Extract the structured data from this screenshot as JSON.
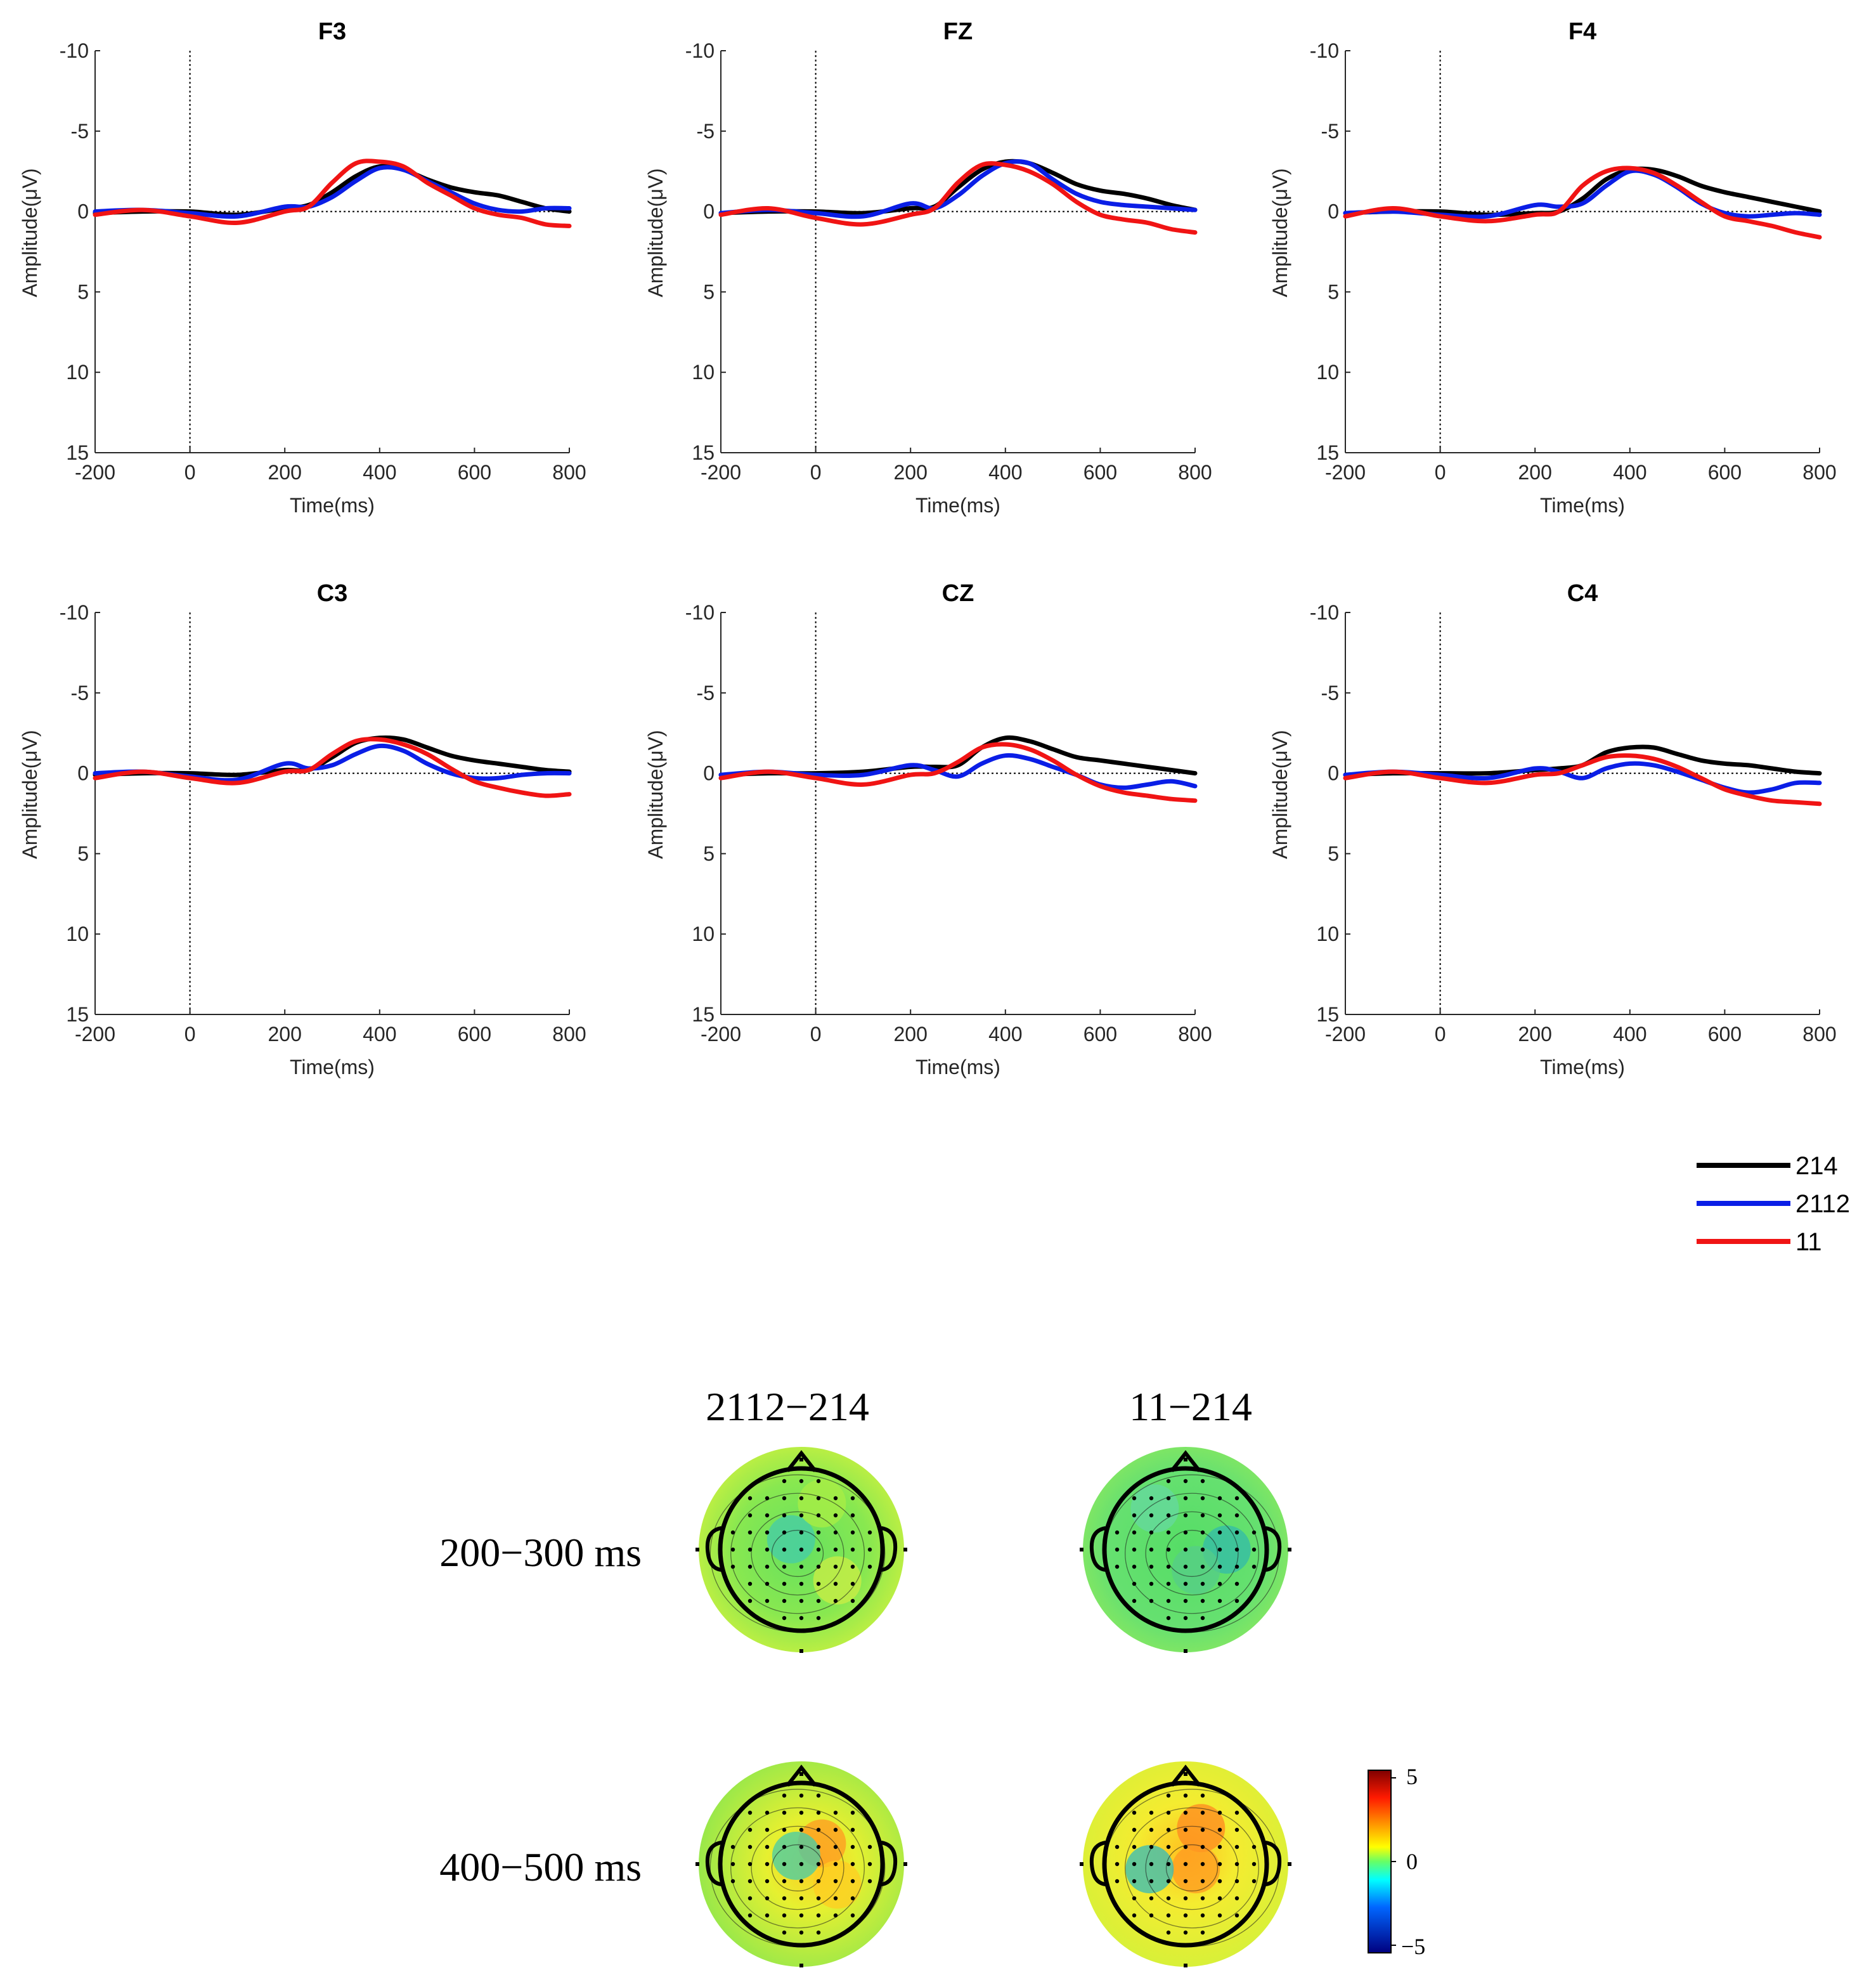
{
  "chart_data": [
    {
      "type": "line",
      "title": "F3",
      "xlabel": "Time(ms)",
      "ylabel": "Amplitude(μV)",
      "xlim": [
        -200,
        800
      ],
      "ylim": [
        -10,
        15
      ],
      "y_inverted": true,
      "xticks": [
        "-200",
        "0",
        "200",
        "400",
        "600",
        "800"
      ],
      "yticks": [
        "-10",
        "-5",
        "0",
        "5",
        "10",
        "15"
      ],
      "x": [
        -200,
        -100,
        0,
        100,
        200,
        250,
        300,
        350,
        400,
        450,
        500,
        550,
        600,
        650,
        700,
        750,
        800
      ],
      "series": [
        {
          "name": "214",
          "values": [
            0.1,
            0,
            0,
            0.2,
            -0.2,
            -0.4,
            -1.2,
            -2.2,
            -2.8,
            -2.6,
            -2.0,
            -1.5,
            -1.2,
            -1.0,
            -0.6,
            -0.2,
            0
          ]
        },
        {
          "name": "2112",
          "values": [
            0,
            -0.1,
            0.1,
            0.3,
            -0.3,
            -0.3,
            -0.9,
            -1.9,
            -2.7,
            -2.6,
            -1.9,
            -1.2,
            -0.5,
            -0.1,
            0,
            -0.2,
            -0.2
          ]
        },
        {
          "name": "11",
          "values": [
            0.2,
            -0.1,
            0.3,
            0.7,
            0,
            -0.3,
            -1.8,
            -3.0,
            -3.1,
            -2.8,
            -1.8,
            -1.0,
            -0.2,
            0.2,
            0.4,
            0.8,
            0.9
          ]
        }
      ]
    },
    {
      "type": "line",
      "title": "FZ",
      "xlabel": "Time(ms)",
      "ylabel": "Amplitude(μV)",
      "xlim": [
        -200,
        800
      ],
      "ylim": [
        -10,
        15
      ],
      "y_inverted": true,
      "xticks": [
        "-200",
        "0",
        "200",
        "400",
        "600",
        "800"
      ],
      "yticks": [
        "-10",
        "-5",
        "0",
        "5",
        "10",
        "15"
      ],
      "x": [
        -200,
        -100,
        0,
        100,
        200,
        250,
        300,
        350,
        400,
        450,
        500,
        550,
        600,
        650,
        700,
        750,
        800
      ],
      "series": [
        {
          "name": "214",
          "values": [
            0.1,
            0,
            0,
            0.1,
            -0.2,
            -0.3,
            -1.5,
            -2.6,
            -3.1,
            -3.0,
            -2.4,
            -1.7,
            -1.3,
            -1.1,
            -0.8,
            -0.4,
            -0.1
          ]
        },
        {
          "name": "2112",
          "values": [
            0.1,
            -0.1,
            0.1,
            0.3,
            -0.5,
            -0.2,
            -1.0,
            -2.2,
            -3.0,
            -3.0,
            -2.0,
            -1.1,
            -0.6,
            -0.4,
            -0.3,
            -0.2,
            -0.1
          ]
        },
        {
          "name": "11",
          "values": [
            0.2,
            -0.2,
            0.4,
            0.8,
            0.2,
            -0.2,
            -1.8,
            -2.9,
            -2.9,
            -2.5,
            -1.7,
            -0.6,
            0.2,
            0.5,
            0.7,
            1.1,
            1.3
          ]
        }
      ]
    },
    {
      "type": "line",
      "title": "F4",
      "xlabel": "Time(ms)",
      "ylabel": "Amplitude(μV)",
      "xlim": [
        -200,
        800
      ],
      "ylim": [
        -10,
        15
      ],
      "y_inverted": true,
      "xticks": [
        "-200",
        "0",
        "200",
        "400",
        "600",
        "800"
      ],
      "yticks": [
        "-10",
        "-5",
        "0",
        "5",
        "10",
        "15"
      ],
      "x": [
        -200,
        -100,
        0,
        100,
        200,
        250,
        300,
        350,
        400,
        450,
        500,
        550,
        600,
        650,
        700,
        750,
        800
      ],
      "series": [
        {
          "name": "214",
          "values": [
            0.1,
            0,
            0,
            0.2,
            0.1,
            0,
            -0.8,
            -2.0,
            -2.6,
            -2.6,
            -2.2,
            -1.6,
            -1.2,
            -0.9,
            -0.6,
            -0.3,
            0
          ]
        },
        {
          "name": "2112",
          "values": [
            0.1,
            0,
            0.2,
            0.3,
            -0.4,
            -0.3,
            -0.5,
            -1.6,
            -2.5,
            -2.3,
            -1.5,
            -0.5,
            0.1,
            0.3,
            0.2,
            0.1,
            0.2
          ]
        },
        {
          "name": "11",
          "values": [
            0.3,
            -0.2,
            0.3,
            0.6,
            0.2,
            0,
            -1.6,
            -2.5,
            -2.7,
            -2.4,
            -1.6,
            -0.6,
            0.3,
            0.6,
            0.9,
            1.3,
            1.6
          ]
        }
      ]
    },
    {
      "type": "line",
      "title": "C3",
      "xlabel": "Time(ms)",
      "ylabel": "Amplitude(μV)",
      "xlim": [
        -200,
        800
      ],
      "ylim": [
        -10,
        15
      ],
      "y_inverted": true,
      "xticks": [
        "-200",
        "0",
        "200",
        "400",
        "600",
        "800"
      ],
      "yticks": [
        "-10",
        "-5",
        "0",
        "5",
        "10",
        "15"
      ],
      "x": [
        -200,
        -100,
        0,
        100,
        200,
        250,
        300,
        350,
        400,
        450,
        500,
        550,
        600,
        650,
        700,
        750,
        800
      ],
      "series": [
        {
          "name": "214",
          "values": [
            0.1,
            0,
            0,
            0.1,
            -0.2,
            -0.2,
            -1.0,
            -1.9,
            -2.2,
            -2.1,
            -1.6,
            -1.1,
            -0.8,
            -0.6,
            -0.4,
            -0.2,
            -0.1
          ]
        },
        {
          "name": "2112",
          "values": [
            0,
            -0.1,
            0.2,
            0.4,
            -0.6,
            -0.3,
            -0.5,
            -1.2,
            -1.7,
            -1.4,
            -0.6,
            0,
            0.3,
            0.3,
            0.1,
            0,
            0
          ]
        },
        {
          "name": "11",
          "values": [
            0.3,
            -0.1,
            0.3,
            0.6,
            -0.1,
            -0.2,
            -1.2,
            -2.0,
            -2.1,
            -1.8,
            -1.2,
            -0.3,
            0.5,
            0.9,
            1.2,
            1.4,
            1.3
          ]
        }
      ]
    },
    {
      "type": "line",
      "title": "CZ",
      "xlabel": "Time(ms)",
      "ylabel": "Amplitude(μV)",
      "xlim": [
        -200,
        800
      ],
      "ylim": [
        -10,
        15
      ],
      "y_inverted": true,
      "xticks": [
        "-200",
        "0",
        "200",
        "400",
        "600",
        "800"
      ],
      "yticks": [
        "-10",
        "-5",
        "0",
        "5",
        "10",
        "15"
      ],
      "x": [
        -200,
        -100,
        0,
        100,
        200,
        250,
        300,
        350,
        400,
        450,
        500,
        550,
        600,
        650,
        700,
        750,
        800
      ],
      "series": [
        {
          "name": "214",
          "values": [
            0.1,
            0,
            0,
            -0.1,
            -0.4,
            -0.4,
            -0.5,
            -1.6,
            -2.2,
            -2.0,
            -1.5,
            -1.0,
            -0.8,
            -0.6,
            -0.4,
            -0.2,
            0
          ]
        },
        {
          "name": "2112",
          "values": [
            0.1,
            -0.1,
            0.1,
            0.1,
            -0.5,
            -0.2,
            0.2,
            -0.6,
            -1.1,
            -0.9,
            -0.4,
            0.1,
            0.7,
            0.9,
            0.7,
            0.5,
            0.8
          ]
        },
        {
          "name": "11",
          "values": [
            0.3,
            -0.1,
            0.3,
            0.7,
            0.1,
            0,
            -0.7,
            -1.6,
            -1.8,
            -1.5,
            -0.8,
            0.1,
            0.8,
            1.2,
            1.4,
            1.6,
            1.7
          ]
        }
      ]
    },
    {
      "type": "line",
      "title": "C4",
      "xlabel": "Time(ms)",
      "ylabel": "Amplitude(μV)",
      "xlim": [
        -200,
        800
      ],
      "ylim": [
        -10,
        15
      ],
      "y_inverted": true,
      "xticks": [
        "-200",
        "0",
        "200",
        "400",
        "600",
        "800"
      ],
      "yticks": [
        "-10",
        "-5",
        "0",
        "5",
        "10",
        "15"
      ],
      "x": [
        -200,
        -100,
        0,
        100,
        200,
        250,
        300,
        350,
        400,
        450,
        500,
        550,
        600,
        650,
        700,
        750,
        800
      ],
      "series": [
        {
          "name": "214",
          "values": [
            0.1,
            0,
            0,
            0,
            -0.2,
            -0.3,
            -0.5,
            -1.3,
            -1.6,
            -1.6,
            -1.2,
            -0.8,
            -0.6,
            -0.5,
            -0.3,
            -0.1,
            0
          ]
        },
        {
          "name": "2112",
          "values": [
            0.1,
            -0.1,
            0.1,
            0.3,
            -0.3,
            -0.1,
            0.3,
            -0.3,
            -0.6,
            -0.5,
            -0.1,
            0.4,
            0.9,
            1.2,
            1.0,
            0.6,
            0.6
          ]
        },
        {
          "name": "11",
          "values": [
            0.3,
            -0.1,
            0.3,
            0.6,
            0.1,
            0,
            -0.5,
            -1.0,
            -1.1,
            -0.9,
            -0.4,
            0.3,
            1.0,
            1.4,
            1.7,
            1.8,
            1.9
          ]
        }
      ]
    }
  ],
  "legend": {
    "items": [
      {
        "label": "214",
        "color": "#000000"
      },
      {
        "label": "2112",
        "color": "#0a1ee6"
      },
      {
        "label": "11",
        "color": "#f01414"
      }
    ]
  },
  "topo": {
    "column_labels": [
      "2112−214",
      "11−214"
    ],
    "row_labels": [
      "200−300 ms",
      "400−500 ms"
    ],
    "colorbar": {
      "max_label": "5",
      "mid_label": "0",
      "min_label": "−5",
      "range": [
        -5,
        5
      ]
    }
  },
  "colors": {
    "series_214": "#000000",
    "series_2112": "#0a1ee6",
    "series_11": "#f01414"
  }
}
